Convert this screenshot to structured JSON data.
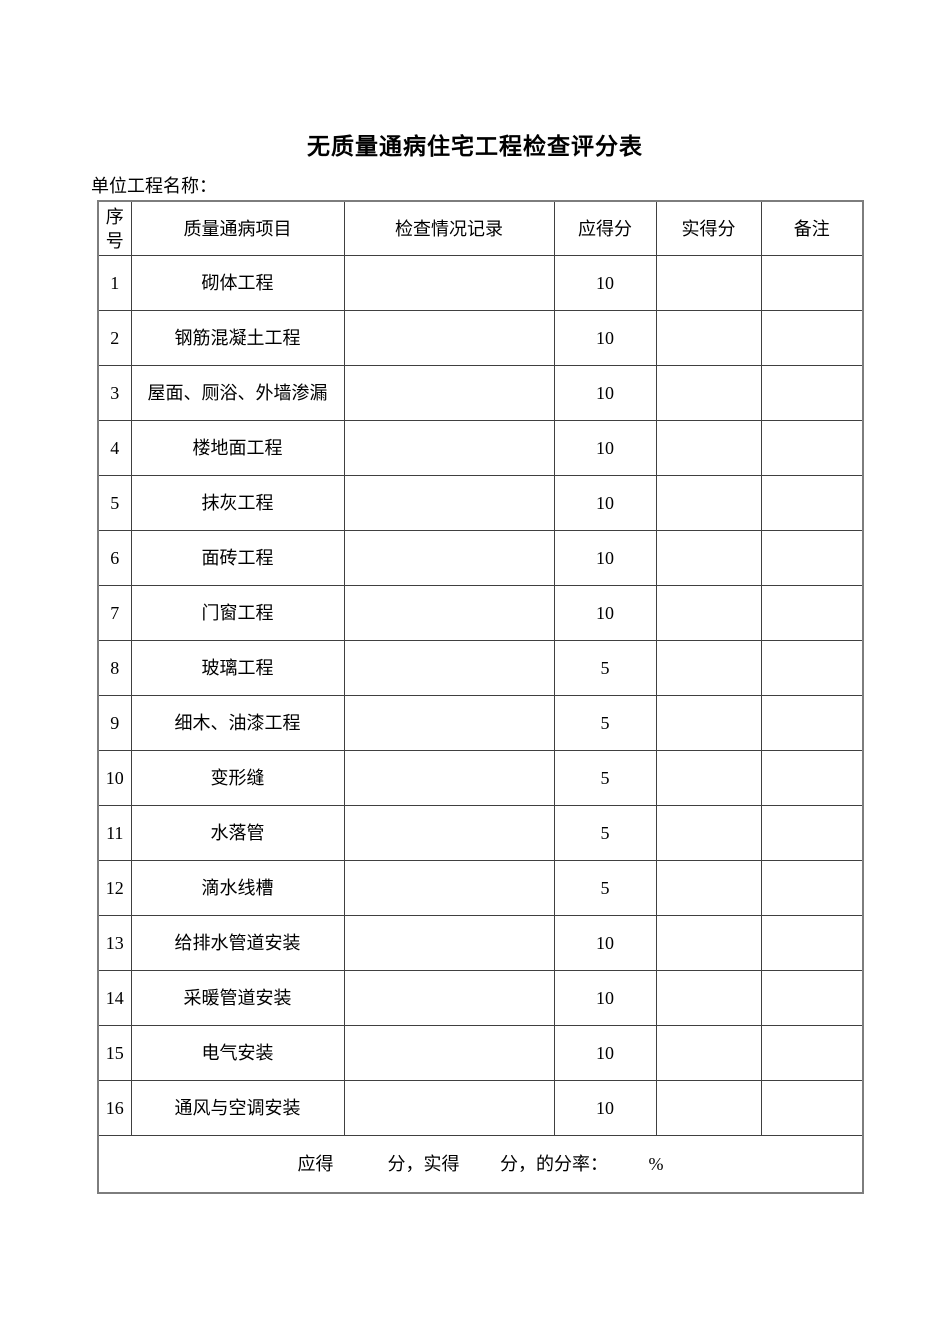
{
  "page": {
    "title": "无质量通病住宅工程检查评分表",
    "project_name_label": "单位工程名称："
  },
  "colors": {
    "text": "#000000",
    "table_border": "#404040",
    "background": "#ffffff"
  },
  "table": {
    "headers": [
      "序号",
      "质量通病项目",
      "检查情况记录",
      "应得分",
      "实得分",
      "备注"
    ],
    "rows": [
      {
        "seq": "1",
        "item": "砌体工程",
        "record": "",
        "expected": "10",
        "actual": "",
        "remark": ""
      },
      {
        "seq": "2",
        "item": "钢筋混凝土工程",
        "record": "",
        "expected": "10",
        "actual": "",
        "remark": ""
      },
      {
        "seq": "3",
        "item": "屋面、厕浴、外墙渗漏",
        "record": "",
        "expected": "10",
        "actual": "",
        "remark": ""
      },
      {
        "seq": "4",
        "item": "楼地面工程",
        "record": "",
        "expected": "10",
        "actual": "",
        "remark": ""
      },
      {
        "seq": "5",
        "item": "抹灰工程",
        "record": "",
        "expected": "10",
        "actual": "",
        "remark": ""
      },
      {
        "seq": "6",
        "item": "面砖工程",
        "record": "",
        "expected": "10",
        "actual": "",
        "remark": ""
      },
      {
        "seq": "7",
        "item": "门窗工程",
        "record": "",
        "expected": "10",
        "actual": "",
        "remark": ""
      },
      {
        "seq": "8",
        "item": "玻璃工程",
        "record": "",
        "expected": "5",
        "actual": "",
        "remark": ""
      },
      {
        "seq": "9",
        "item": "细木、油漆工程",
        "record": "",
        "expected": "5",
        "actual": "",
        "remark": ""
      },
      {
        "seq": "10",
        "item": "变形缝",
        "record": "",
        "expected": "5",
        "actual": "",
        "remark": ""
      },
      {
        "seq": "11",
        "item": "水落管",
        "record": "",
        "expected": "5",
        "actual": "",
        "remark": ""
      },
      {
        "seq": "12",
        "item": "滴水线槽",
        "record": "",
        "expected": "5",
        "actual": "",
        "remark": ""
      },
      {
        "seq": "13",
        "item": "给排水管道安装",
        "record": "",
        "expected": "10",
        "actual": "",
        "remark": ""
      },
      {
        "seq": "14",
        "item": "采暖管道安装",
        "record": "",
        "expected": "10",
        "actual": "",
        "remark": ""
      },
      {
        "seq": "15",
        "item": "电气安装",
        "record": "",
        "expected": "10",
        "actual": "",
        "remark": ""
      },
      {
        "seq": "16",
        "item": "通风与空调安装",
        "record": "",
        "expected": "10",
        "actual": "",
        "remark": ""
      }
    ],
    "footer_text": "应得            分，实得         分，的分率：         %"
  }
}
